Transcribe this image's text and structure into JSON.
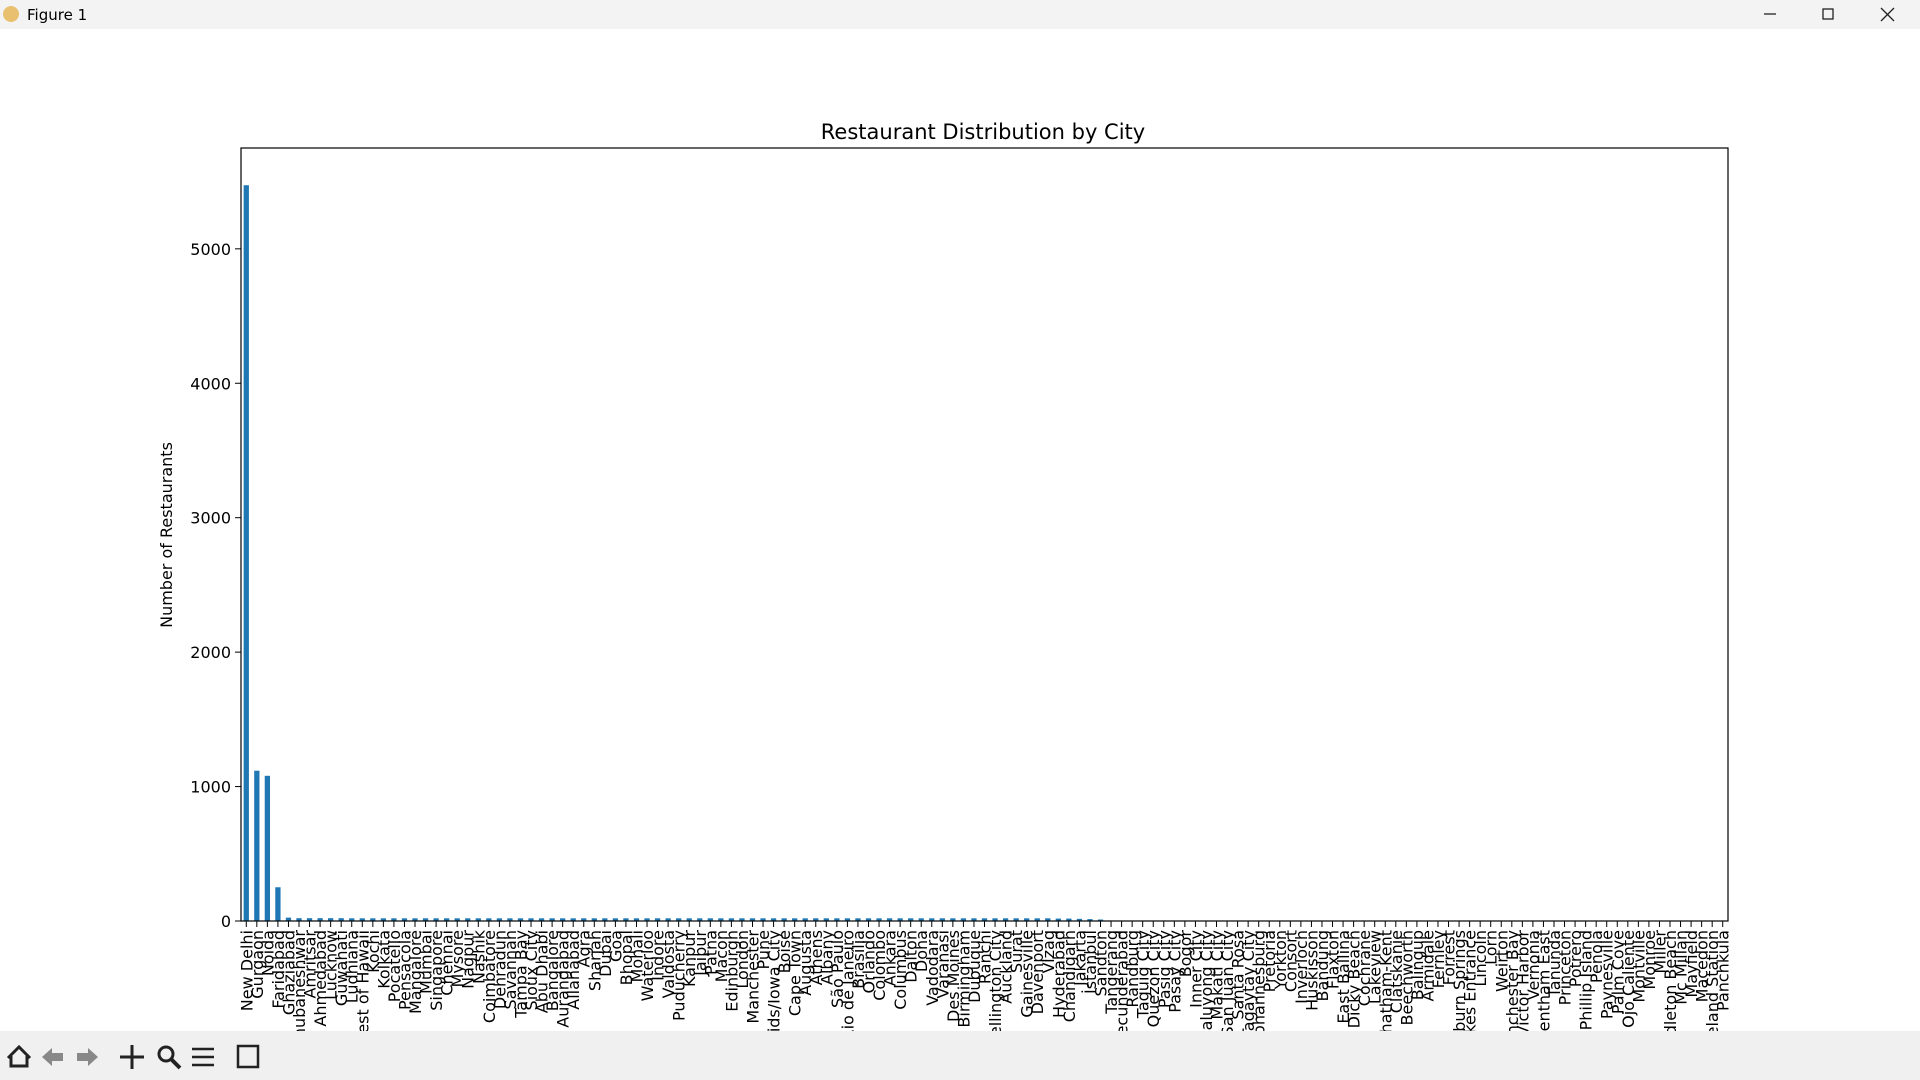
{
  "window": {
    "title": "Figure 1"
  },
  "chart_data": {
    "type": "bar",
    "title": "Restaurant Distribution by City",
    "ylabel": "Number of Restaurants",
    "color": "#1f77b4",
    "categories": [
      "New Delhi",
      "Gurgaon",
      "Noida",
      "Faridabad",
      "Ghaziabad",
      "Bhubaneshwar",
      "Amritsar",
      "Ahmedabad",
      "Lucknow",
      "Guwahati",
      "Ludhiana",
      "Rest of Hawaii",
      "Kochi",
      "Kolkata",
      "Pocatello",
      "Pensacola",
      "Mangalore",
      "Mumbai",
      "Singapore",
      "Chennai",
      "Mysore",
      "Nagpur",
      "Nashik",
      "Coimbatore",
      "Dehradun",
      "Savannah",
      "Tampa Bay",
      "Sioux City",
      "Abu Dhabi",
      "Bangalore",
      "Aurangabad",
      "Allahabad",
      "Agra",
      "Sharjah",
      "Dubai",
      "Goa",
      "Bhopal",
      "Mohali",
      "Waterloo",
      "Indore",
      "Valdosta",
      "Puducherry",
      "Kanpur",
      "Jaipur",
      "Patna",
      "Macon",
      "Edinburgh",
      "London",
      "Manchester",
      "Pune",
      "Cedar Rapids/Iowa City",
      "Boise",
      "Cape Town",
      "Augusta",
      "Athens",
      "Albany",
      "São Paulo",
      "Rio de Janeiro",
      "Brasília",
      "Orlando",
      "Colombo",
      "Ankara",
      "Columbus",
      "Dalton",
      "Doha",
      "Vadodara",
      "Varanasi",
      "Des Moines",
      "Birmingham",
      "Dubuque",
      "Ranchi",
      "Wellington City",
      "Auckland",
      "Surat",
      "Gainesville",
      "Davenport",
      "Vizag",
      "Hyderabad",
      "Chandigarh",
      "Jakarta",
      "İstanbul",
      "Sandton",
      "Tangerang",
      "Secunderabad",
      "Randburg",
      "Taguig City",
      "Quezon City",
      "Pasig City",
      "Pasay City",
      "Bogor",
      "Inner City",
      "Mandaluyong City",
      "Makati City",
      "San Juan City",
      "Santa Rosa",
      "Tagaytay City",
      "Johannesburg",
      "Pretoria",
      "Yorkton",
      "Consort",
      "Inverloch",
      "Huskisson",
      "Bandung",
      "Flaxton",
      "East Ballina",
      "Dicky Beach",
      "Cochrane",
      "Lakeview",
      "Chatham-Kent",
      "Clatskanie",
      "Beechworth",
      "Balingup",
      "Armidale",
      "Fernley",
      "Forrest",
      "Hepburn Springs",
      "Lakes Entrance",
      "Lincoln",
      "Lorn",
      "Weirton",
      "Winchester Bay",
      "Victor Harbor",
      "Vernonia",
      "Trentham East",
      "Tanunda",
      "Princeton",
      "Potrero",
      "Phillip Island",
      "Penola",
      "Paynesville",
      "Palm Cove",
      "Ojo Caliente",
      "Montville",
      "Monroe",
      "Miller",
      "Middleton Beach",
      "Mc Millan",
      "Mayfield",
      "Macedon",
      "Vineland Station",
      "Panchkula"
    ],
    "values": [
      5473,
      1118,
      1080,
      251,
      25,
      21,
      21,
      21,
      21,
      21,
      20,
      20,
      20,
      20,
      20,
      20,
      20,
      20,
      20,
      20,
      20,
      20,
      20,
      20,
      20,
      20,
      20,
      20,
      20,
      20,
      20,
      20,
      20,
      20,
      20,
      20,
      20,
      20,
      20,
      20,
      20,
      20,
      20,
      20,
      20,
      20,
      20,
      20,
      20,
      20,
      20,
      20,
      20,
      20,
      20,
      20,
      20,
      20,
      20,
      20,
      20,
      20,
      20,
      20,
      20,
      20,
      20,
      20,
      20,
      20,
      20,
      20,
      20,
      20,
      20,
      20,
      20,
      18,
      18,
      16,
      14,
      11,
      4,
      2,
      2,
      2,
      2,
      2,
      2,
      2,
      2,
      2,
      2,
      2,
      2,
      2,
      1,
      1,
      1,
      1,
      1,
      1,
      1,
      1,
      1,
      1,
      1,
      1,
      1,
      1,
      1,
      1,
      1,
      1,
      1,
      1,
      1,
      1,
      1,
      1,
      1,
      1,
      1,
      1,
      1,
      1,
      1,
      1,
      1,
      1,
      1,
      1,
      1,
      1,
      1,
      1,
      1,
      1,
      1,
      1,
      1
    ],
    "ylim": [
      0,
      5750
    ],
    "yticks": [
      0,
      1000,
      2000,
      3000,
      4000,
      5000
    ]
  }
}
